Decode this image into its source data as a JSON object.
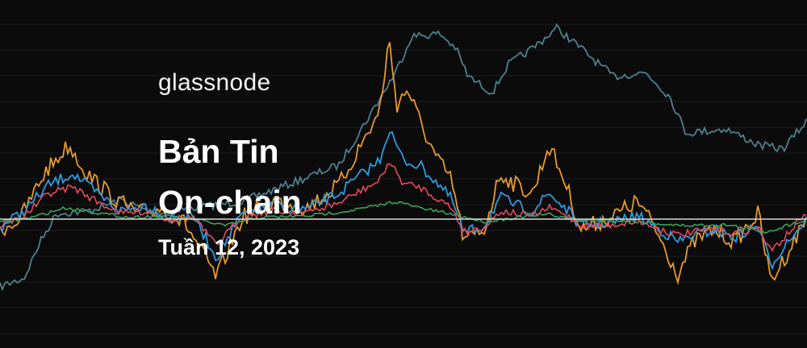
{
  "brand": "glassnode",
  "title_line1": "Bản Tin",
  "title_line2": "On-chain",
  "subtitle": "Tuần 12, 2023",
  "colors": {
    "background": "#0b0b0c",
    "grid": "#1c1c1f",
    "zero_line": "#d9d9d9",
    "price_line": "#4f7f8c",
    "orange": "#e89a2a",
    "blue": "#2c9be0",
    "red": "#e8485a",
    "green": "#3aa35a"
  }
}
